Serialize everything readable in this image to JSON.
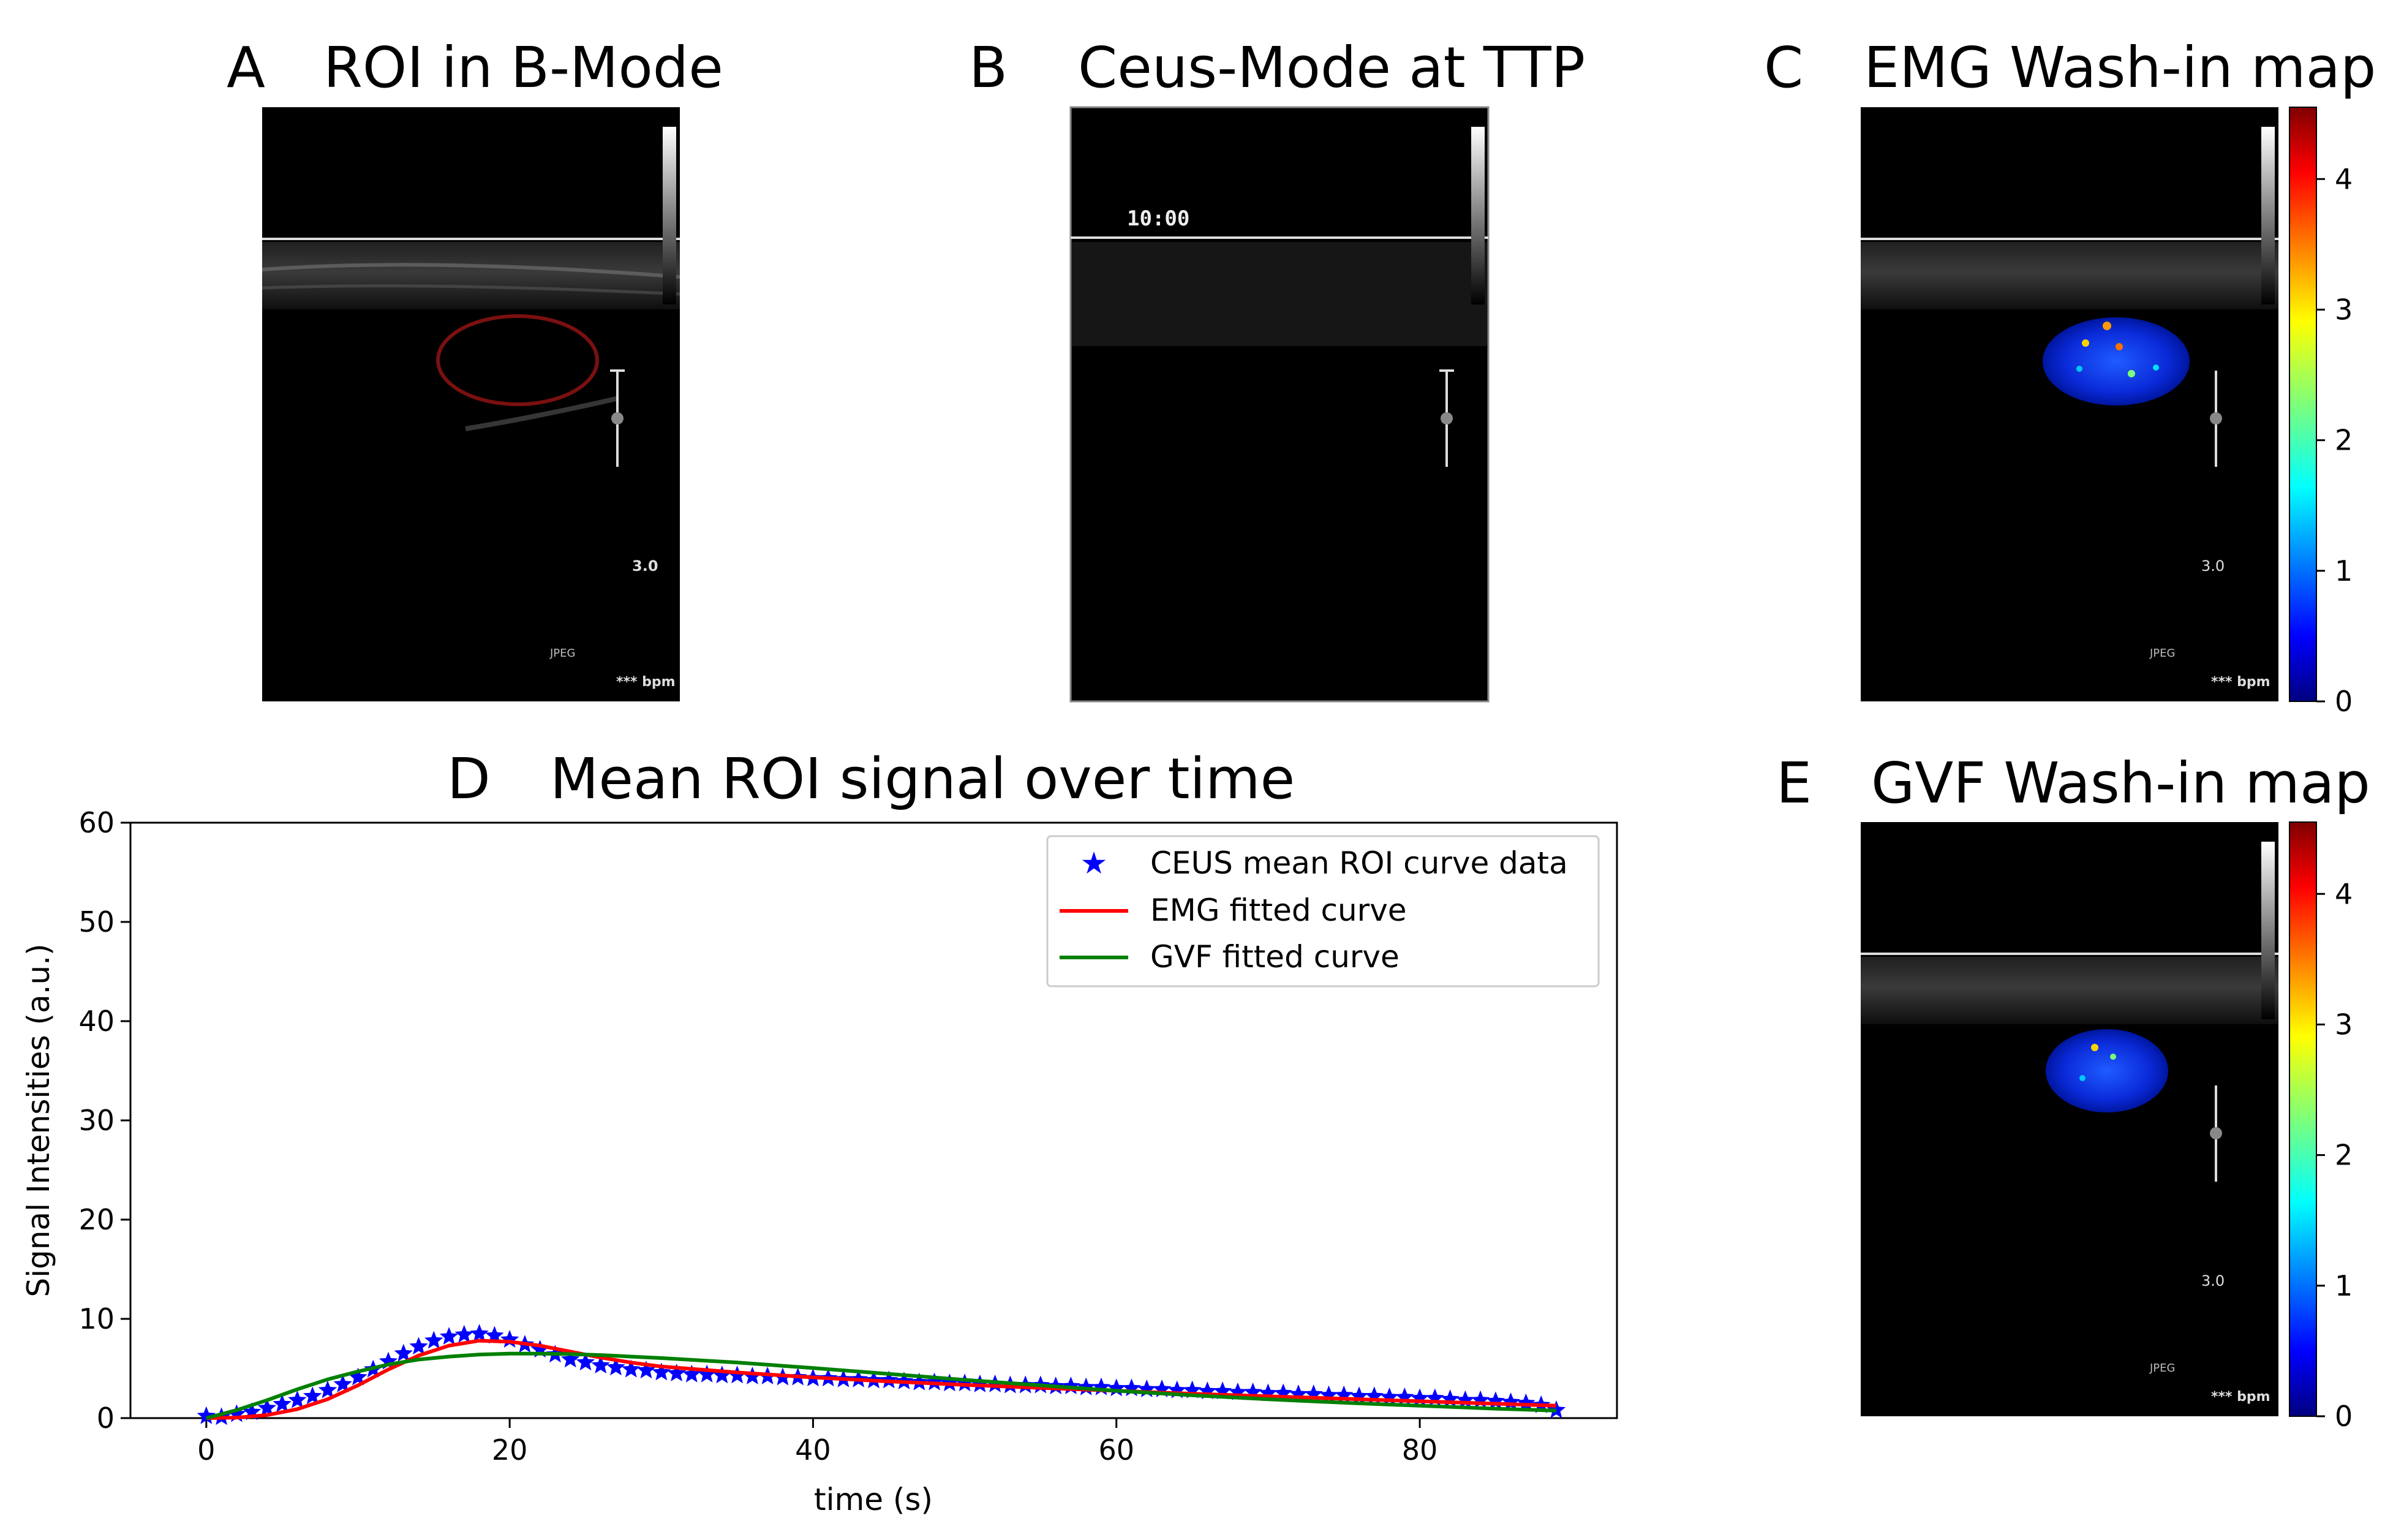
{
  "panels": {
    "a": {
      "letter": "A",
      "title": "ROI in B-Mode"
    },
    "b": {
      "letter": "B",
      "title": "Ceus-Mode at TTP",
      "overlay_time": "10:00"
    },
    "c": {
      "letter": "C",
      "title": "EMG Wash-in map"
    },
    "d": {
      "letter": "D",
      "title": "Mean ROI signal over time"
    },
    "e": {
      "letter": "E",
      "title": "GVF Wash-in map"
    }
  },
  "ultrasound_labels": {
    "depth": "3.0",
    "format": "JPEG",
    "heart_rate": "*** bpm"
  },
  "colorbar": {
    "ticks": [
      "0",
      "1",
      "2",
      "3",
      "4"
    ],
    "max_value": 4.55,
    "colormap": "jet"
  },
  "roi_color": "#7a1010",
  "chart_data": {
    "type": "line",
    "title": "Mean ROI signal over time",
    "xlabel": "time (s)",
    "ylabel": "Signal Intensities (a.u.)",
    "xlim": [
      -5,
      93
    ],
    "ylim": [
      0,
      60
    ],
    "xticks": [
      0,
      20,
      40,
      60,
      80
    ],
    "yticks": [
      0,
      10,
      20,
      30,
      40,
      50,
      60
    ],
    "grid": false,
    "legend_position": "upper right",
    "series": [
      {
        "name": "CEUS mean ROI curve data",
        "style": "markers",
        "marker": "star",
        "color": "#0000ff",
        "x": [
          0,
          1,
          2,
          3,
          4,
          5,
          6,
          7,
          8,
          9,
          10,
          11,
          12,
          13,
          14,
          15,
          16,
          17,
          18,
          19,
          20,
          21,
          22,
          23,
          24,
          25,
          26,
          27,
          28,
          29,
          30,
          31,
          32,
          33,
          34,
          35,
          36,
          37,
          38,
          39,
          40,
          41,
          42,
          43,
          44,
          45,
          46,
          47,
          48,
          49,
          50,
          51,
          52,
          53,
          54,
          55,
          56,
          57,
          58,
          59,
          60,
          61,
          62,
          63,
          64,
          65,
          66,
          67,
          68,
          69,
          70,
          71,
          72,
          73,
          74,
          75,
          76,
          77,
          78,
          79,
          80,
          81,
          82,
          83,
          84,
          85,
          86,
          87,
          88,
          89
        ],
        "y": [
          0.2,
          0.1,
          0.4,
          0.6,
          1.0,
          1.4,
          1.8,
          2.2,
          2.8,
          3.4,
          4.1,
          4.9,
          5.7,
          6.5,
          7.2,
          7.8,
          8.2,
          8.4,
          8.5,
          8.3,
          7.9,
          7.4,
          6.9,
          6.4,
          5.9,
          5.6,
          5.3,
          5.1,
          4.9,
          4.8,
          4.6,
          4.5,
          4.4,
          4.4,
          4.3,
          4.3,
          4.2,
          4.2,
          4.1,
          4.1,
          4.0,
          4.0,
          3.9,
          3.9,
          3.8,
          3.8,
          3.7,
          3.6,
          3.6,
          3.5,
          3.5,
          3.4,
          3.4,
          3.3,
          3.3,
          3.3,
          3.2,
          3.2,
          3.1,
          3.1,
          3.0,
          3.0,
          2.9,
          2.9,
          2.8,
          2.8,
          2.7,
          2.7,
          2.6,
          2.6,
          2.5,
          2.5,
          2.4,
          2.4,
          2.3,
          2.3,
          2.2,
          2.2,
          2.1,
          2.1,
          2.0,
          2.0,
          1.9,
          1.8,
          1.8,
          1.7,
          1.6,
          1.5,
          1.3,
          0.8
        ]
      },
      {
        "name": "EMG fitted curve",
        "style": "line",
        "color": "#ff0000",
        "x": [
          0,
          2,
          4,
          6,
          8,
          10,
          12,
          14,
          16,
          18,
          20,
          22,
          24,
          26,
          28,
          30,
          35,
          40,
          45,
          50,
          55,
          60,
          65,
          70,
          75,
          80,
          85,
          89
        ],
        "y": [
          0,
          0.05,
          0.3,
          0.9,
          1.9,
          3.3,
          4.9,
          6.3,
          7.3,
          7.8,
          7.7,
          7.3,
          6.7,
          6.1,
          5.6,
          5.2,
          4.6,
          4.1,
          3.7,
          3.35,
          3.05,
          2.75,
          2.45,
          2.2,
          1.95,
          1.7,
          1.45,
          1.25
        ]
      },
      {
        "name": "GVF fitted curve",
        "style": "line",
        "color": "#008000",
        "x": [
          0,
          2,
          4,
          6,
          8,
          10,
          12,
          14,
          16,
          18,
          20,
          22,
          24,
          26,
          28,
          30,
          35,
          40,
          45,
          50,
          55,
          60,
          65,
          70,
          75,
          80,
          85,
          89
        ],
        "y": [
          0,
          0.8,
          1.8,
          2.9,
          3.9,
          4.7,
          5.4,
          5.9,
          6.2,
          6.4,
          6.5,
          6.5,
          6.45,
          6.35,
          6.2,
          6.05,
          5.6,
          5.05,
          4.45,
          3.85,
          3.3,
          2.75,
          2.3,
          1.9,
          1.55,
          1.25,
          0.95,
          0.75
        ]
      }
    ]
  }
}
